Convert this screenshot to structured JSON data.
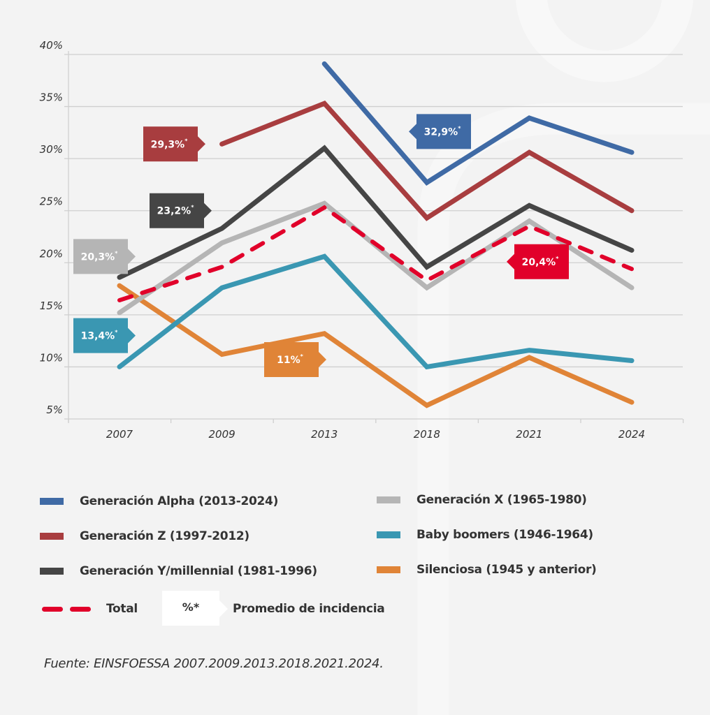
{
  "chart_data": {
    "type": "line",
    "title": "",
    "xlabel": "",
    "ylabel": "",
    "x": [
      "2007",
      "2009",
      "2013",
      "2018",
      "2021",
      "2024"
    ],
    "ylim": [
      5,
      40
    ],
    "yticks": [
      5,
      10,
      15,
      20,
      25,
      30,
      35,
      40
    ],
    "ytick_labels": [
      "5%",
      "10%",
      "15%",
      "20%",
      "25%",
      "30%",
      "35%",
      "40%"
    ],
    "grid": true,
    "legend_position": "bottom",
    "series": [
      {
        "name": "Generación Alpha (2013-2024)",
        "color": "#3f6aa5",
        "dashed": false,
        "values": [
          null,
          null,
          39.1,
          27.7,
          33.9,
          30.6
        ],
        "average_label": "32,9%*"
      },
      {
        "name": "Generación Z (1997-2012)",
        "color": "#a83d3f",
        "dashed": false,
        "values": [
          null,
          31.4,
          35.3,
          24.3,
          30.6,
          25.0
        ],
        "average_label": "29,3%*"
      },
      {
        "name": "Generación Y/millennial (1981-1996)",
        "color": "#454545",
        "dashed": false,
        "values": [
          18.6,
          23.3,
          31.0,
          19.6,
          25.5,
          21.2
        ],
        "average_label": "23,2%*"
      },
      {
        "name": "Generación X (1965-1980)",
        "color": "#b5b5b5",
        "dashed": false,
        "values": [
          15.2,
          21.9,
          25.7,
          17.6,
          24.0,
          17.6
        ],
        "average_label": "20,3%*"
      },
      {
        "name": "Baby boomers (1946-1964)",
        "color": "#3a97b2",
        "dashed": false,
        "values": [
          10.0,
          17.6,
          20.6,
          10.0,
          11.6,
          10.6
        ],
        "average_label": "13,4%*"
      },
      {
        "name": "Silenciosa (1945 y anterior)",
        "color": "#e08437",
        "dashed": false,
        "values": [
          17.8,
          11.2,
          13.2,
          6.3,
          10.9,
          6.6
        ],
        "average_label": "11%*"
      },
      {
        "name": "Total",
        "color": "#e1002a",
        "dashed": true,
        "values": [
          16.4,
          19.6,
          25.3,
          18.3,
          23.5,
          19.4
        ],
        "average_label": "20,4%*"
      }
    ],
    "annotations": [
      {
        "series": "Generación Z (1997-2012)",
        "text": "29,3%",
        "mark": "*",
        "anchor_x": "2009",
        "anchor_y": 31.4,
        "pointer": "right"
      },
      {
        "series": "Generación Y/millennial (1981-1996)",
        "text": "23,2%",
        "mark": "*",
        "anchor_x": "2009",
        "anchor_y": 25.0,
        "pointer": "right"
      },
      {
        "series": "Generación X (1965-1980)",
        "text": "20,3%",
        "mark": "*",
        "anchor_x": "2007",
        "anchor_y": 20.6,
        "pointer": "right"
      },
      {
        "series": "Baby boomers (1946-1964)",
        "text": "13,4%",
        "mark": "*",
        "anchor_x": "2007",
        "anchor_y": 13.0,
        "pointer": "right"
      },
      {
        "series": "Silenciosa (1945 y anterior)",
        "text": "11%",
        "mark": "*",
        "anchor_x": "2013",
        "anchor_y": 10.7,
        "pointer": "right"
      },
      {
        "series": "Generación Alpha (2013-2024)",
        "text": "32,9%",
        "mark": "*",
        "anchor_x": "2018",
        "anchor_y": 32.6,
        "pointer": "left"
      },
      {
        "series": "Total",
        "text": "20,4%",
        "mark": "*",
        "anchor_x": "2021",
        "anchor_y": 20.1,
        "pointer": "left"
      }
    ]
  },
  "legend": {
    "total_label": "Total",
    "pct_symbol": "%*",
    "pct_meaning": "Promedio de incidencia"
  },
  "source": "Fuente: EINSFOESSA 2007.2009.2013.2018.2021.2024."
}
